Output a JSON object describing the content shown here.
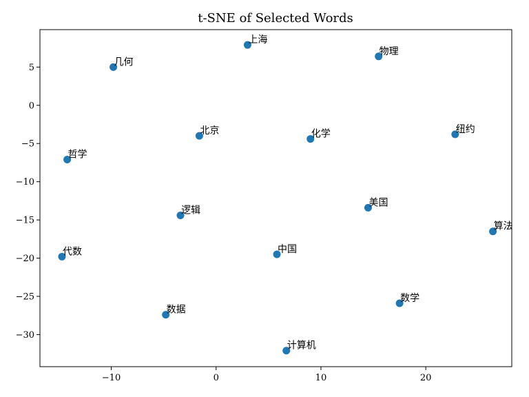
{
  "chart_data": {
    "type": "scatter",
    "title": "t-SNE of Selected Words",
    "xlabel": "",
    "ylabel": "",
    "xlim": [
      -16.8,
      28.2
    ],
    "ylim": [
      -34.2,
      9.9
    ],
    "xticks": [
      -10,
      0,
      10,
      20
    ],
    "xtick_labels": [
      "−10",
      "0",
      "10",
      "20"
    ],
    "yticks": [
      5,
      0,
      -5,
      -10,
      -15,
      -20,
      -25,
      -30
    ],
    "ytick_labels": [
      "5",
      "0",
      "−5",
      "−10",
      "−15",
      "−20",
      "−25",
      "−30"
    ],
    "grid": false,
    "color": "#1f77b4",
    "points": [
      {
        "label": "上海",
        "x": 3.0,
        "y": 7.9
      },
      {
        "label": "物理",
        "x": 15.5,
        "y": 6.4
      },
      {
        "label": "几何",
        "x": -9.8,
        "y": 5.0
      },
      {
        "label": "北京",
        "x": -1.6,
        "y": -4.0
      },
      {
        "label": "化学",
        "x": 9.0,
        "y": -4.4
      },
      {
        "label": "纽约",
        "x": 22.8,
        "y": -3.8
      },
      {
        "label": "哲学",
        "x": -14.2,
        "y": -7.1
      },
      {
        "label": "逻辑",
        "x": -3.4,
        "y": -14.4
      },
      {
        "label": "美国",
        "x": 14.5,
        "y": -13.4
      },
      {
        "label": "算法",
        "x": 26.4,
        "y": -16.5
      },
      {
        "label": "代数",
        "x": -14.7,
        "y": -19.8
      },
      {
        "label": "中国",
        "x": 5.8,
        "y": -19.5
      },
      {
        "label": "数学",
        "x": 17.5,
        "y": -25.9
      },
      {
        "label": "数据",
        "x": -4.8,
        "y": -27.4
      },
      {
        "label": "计算机",
        "x": 6.7,
        "y": -32.1
      }
    ]
  }
}
